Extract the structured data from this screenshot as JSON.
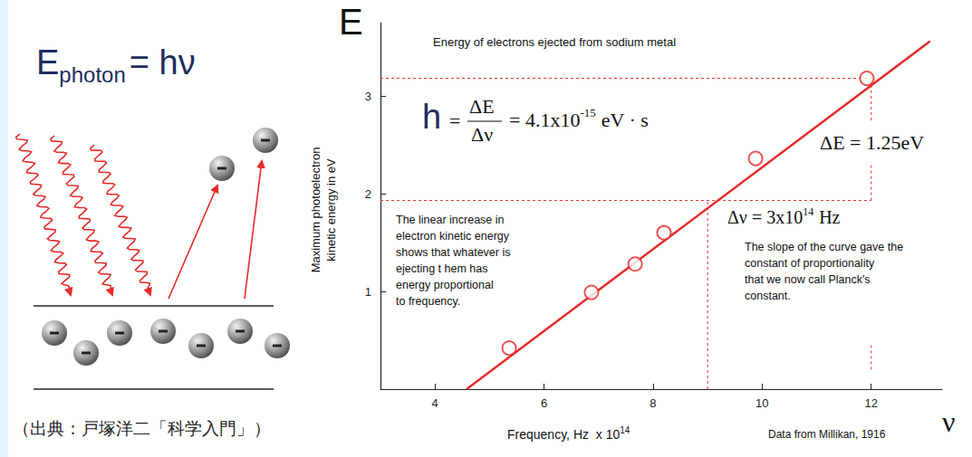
{
  "chart_data": {
    "type": "scatter",
    "title": "Energy of electrons ejected from sodium metal",
    "y_symbol": "E",
    "x_symbol": "ν",
    "y_label": [
      "Maximum photoelectron",
      "kinetic energy in eV"
    ],
    "x_label": {
      "text": "Frequency, Hz  x 10",
      "exponent": "14"
    },
    "xlim": [
      3.0,
      13.3
    ],
    "ylim": [
      0,
      3.75
    ],
    "xticks": [
      4,
      6,
      8,
      10,
      12
    ],
    "yticks": [
      1,
      2,
      3
    ],
    "grid": false,
    "series": [
      {
        "type": "line",
        "color": "#e42b2b",
        "line_style": "solid",
        "x": [
          4.58,
          13.08
        ],
        "values": [
          0,
          3.56
        ]
      },
      {
        "type": "scatter",
        "marker": "open_circle",
        "color": "#e42b2b",
        "x": [
          5.36,
          6.87,
          7.67,
          8.2,
          9.88,
          11.92
        ],
        "values": [
          0.42,
          0.99,
          1.28,
          1.6,
          2.36,
          3.18
        ]
      },
      {
        "type": "line",
        "color": "#e42b2b",
        "line_style": "dashed",
        "x": [
          3.0,
          12
        ],
        "values": [
          3.18,
          3.18
        ]
      },
      {
        "type": "line",
        "color": "#e42b2b",
        "line_style": "dashed",
        "x": [
          3.0,
          12
        ],
        "values": [
          1.93,
          1.93
        ]
      },
      {
        "type": "line",
        "color": "#e42b2b",
        "line_style": "dashed",
        "x": [
          9,
          9
        ],
        "values": [
          0,
          1.93
        ]
      },
      {
        "type": "line",
        "color": "#e42b2b",
        "line_style": "dashed",
        "x": [
          12,
          12
        ],
        "values": [
          2.75,
          3.18
        ]
      },
      {
        "type": "line",
        "color": "#e42b2b",
        "line_style": "dashed",
        "x": [
          12,
          12
        ],
        "values": [
          1.93,
          2.3
        ]
      },
      {
        "type": "line",
        "color": "#e42b2b",
        "line_style": "dashed",
        "x": [
          12,
          12
        ],
        "values": [
          0.2,
          0.45
        ]
      }
    ],
    "annotations": {
      "formula": {
        "symbol": "h",
        "equals": "=",
        "numerator": "ΔE",
        "denominator": "Δν",
        "value": "= 4.1x10",
        "exponent": "-15",
        "unit": "eV · s"
      },
      "delta_E": "ΔE = 1.25eV",
      "delta_nu": {
        "text": "Δν = 3x10",
        "exponent": "14",
        "unit": "Hz"
      },
      "notes": [
        [
          "The linear increase in",
          "electron kinetic energy",
          "shows that whatever is",
          "ejecting t hem has",
          "energy proportional",
          "to frequency."
        ],
        [
          "The slope of the curve gave the",
          "constant of proportionality",
          "that we now call Planck's",
          "constant."
        ]
      ],
      "credit": "Data from Millikan, 1916"
    }
  },
  "diagram": {
    "equation": {
      "symbol": "E",
      "subscript": "photon",
      "rhs": "= hν"
    },
    "source": "（出典：戸塚洋二「科学入門」）"
  }
}
